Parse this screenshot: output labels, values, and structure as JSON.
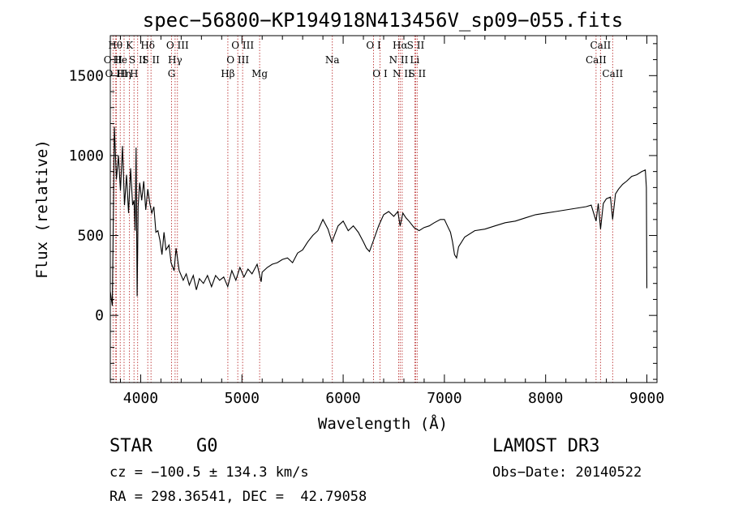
{
  "chart_data": {
    "type": "line",
    "title": "spec−56800−KP194918N413456V_sp09−055.fits",
    "xlabel": "Wavelength (Å)",
    "ylabel": "Flux (relative)",
    "xlim": [
      3700,
      9100
    ],
    "ylim": [
      -420,
      1750
    ],
    "xticks": [
      4000,
      5000,
      6000,
      7000,
      8000,
      9000
    ],
    "yticks": [
      0,
      500,
      1000,
      1500
    ],
    "series": [
      {
        "values": [
          [
            3700,
            150
          ],
          [
            3720,
            60
          ],
          [
            3740,
            1180
          ],
          [
            3760,
            850
          ],
          [
            3780,
            1000
          ],
          [
            3800,
            780
          ],
          [
            3820,
            1060
          ],
          [
            3840,
            690
          ],
          [
            3860,
            880
          ],
          [
            3880,
            640
          ],
          [
            3900,
            920
          ],
          [
            3920,
            690
          ],
          [
            3935,
            720
          ],
          [
            3945,
            530
          ],
          [
            3955,
            1050
          ],
          [
            3965,
            120
          ],
          [
            3975,
            680
          ],
          [
            3990,
            830
          ],
          [
            4010,
            720
          ],
          [
            4030,
            840
          ],
          [
            4050,
            660
          ],
          [
            4070,
            790
          ],
          [
            4090,
            700
          ],
          [
            4110,
            640
          ],
          [
            4130,
            680
          ],
          [
            4150,
            520
          ],
          [
            4170,
            530
          ],
          [
            4190,
            470
          ],
          [
            4210,
            380
          ],
          [
            4230,
            520
          ],
          [
            4250,
            410
          ],
          [
            4280,
            440
          ],
          [
            4300,
            330
          ],
          [
            4330,
            280
          ],
          [
            4350,
            420
          ],
          [
            4380,
            280
          ],
          [
            4420,
            220
          ],
          [
            4450,
            260
          ],
          [
            4480,
            190
          ],
          [
            4520,
            250
          ],
          [
            4550,
            160
          ],
          [
            4580,
            230
          ],
          [
            4620,
            200
          ],
          [
            4660,
            250
          ],
          [
            4700,
            180
          ],
          [
            4740,
            250
          ],
          [
            4780,
            220
          ],
          [
            4820,
            240
          ],
          [
            4860,
            180
          ],
          [
            4900,
            280
          ],
          [
            4940,
            220
          ],
          [
            4980,
            300
          ],
          [
            5020,
            240
          ],
          [
            5060,
            290
          ],
          [
            5100,
            260
          ],
          [
            5150,
            320
          ],
          [
            5190,
            210
          ],
          [
            5200,
            270
          ],
          [
            5250,
            300
          ],
          [
            5300,
            320
          ],
          [
            5350,
            330
          ],
          [
            5400,
            350
          ],
          [
            5450,
            360
          ],
          [
            5500,
            330
          ],
          [
            5550,
            390
          ],
          [
            5600,
            410
          ],
          [
            5650,
            460
          ],
          [
            5700,
            500
          ],
          [
            5750,
            530
          ],
          [
            5800,
            600
          ],
          [
            5850,
            540
          ],
          [
            5890,
            460
          ],
          [
            5950,
            560
          ],
          [
            6000,
            590
          ],
          [
            6050,
            530
          ],
          [
            6100,
            560
          ],
          [
            6150,
            520
          ],
          [
            6200,
            460
          ],
          [
            6230,
            420
          ],
          [
            6260,
            400
          ],
          [
            6300,
            470
          ],
          [
            6350,
            560
          ],
          [
            6400,
            630
          ],
          [
            6450,
            650
          ],
          [
            6500,
            620
          ],
          [
            6540,
            650
          ],
          [
            6563,
            560
          ],
          [
            6590,
            640
          ],
          [
            6620,
            610
          ],
          [
            6650,
            590
          ],
          [
            6700,
            550
          ],
          [
            6750,
            530
          ],
          [
            6800,
            550
          ],
          [
            6850,
            560
          ],
          [
            6900,
            580
          ],
          [
            6960,
            600
          ],
          [
            7000,
            600
          ],
          [
            7030,
            560
          ],
          [
            7060,
            520
          ],
          [
            7080,
            460
          ],
          [
            7100,
            380
          ],
          [
            7120,
            360
          ],
          [
            7140,
            430
          ],
          [
            7200,
            490
          ],
          [
            7300,
            530
          ],
          [
            7400,
            540
          ],
          [
            7500,
            560
          ],
          [
            7600,
            580
          ],
          [
            7700,
            590
          ],
          [
            7800,
            610
          ],
          [
            7900,
            630
          ],
          [
            8000,
            640
          ],
          [
            8100,
            650
          ],
          [
            8200,
            660
          ],
          [
            8300,
            670
          ],
          [
            8400,
            680
          ],
          [
            8450,
            690
          ],
          [
            8498,
            590
          ],
          [
            8520,
            700
          ],
          [
            8542,
            540
          ],
          [
            8570,
            700
          ],
          [
            8600,
            730
          ],
          [
            8640,
            740
          ],
          [
            8662,
            600
          ],
          [
            8690,
            760
          ],
          [
            8720,
            790
          ],
          [
            8760,
            820
          ],
          [
            8800,
            840
          ],
          [
            8850,
            870
          ],
          [
            8900,
            880
          ],
          [
            8950,
            900
          ],
          [
            8985,
            910
          ],
          [
            8995,
            800
          ],
          [
            9000,
            170
          ]
        ]
      }
    ],
    "lines": [
      {
        "label": "O II",
        "wl": 3727,
        "row": 1
      },
      {
        "label": "Hθ",
        "wl": 3750,
        "row": 0
      },
      {
        "label": "O III",
        "wl": 3760,
        "row": 2
      },
      {
        "label": "He",
        "wl": 3798,
        "row": 1
      },
      {
        "label": "Hη",
        "wl": 3836,
        "row": 2
      },
      {
        "label": "K",
        "wl": 3889,
        "row": 0
      },
      {
        "label": "H",
        "wl": 3934,
        "row": 2
      },
      {
        "label": "S II",
        "wl": 3970,
        "row": 1
      },
      {
        "label": "Hδ",
        "wl": 4070,
        "row": 0
      },
      {
        "label": "S II",
        "wl": 4102,
        "row": 1
      },
      {
        "label": "G",
        "wl": 4305,
        "row": 2
      },
      {
        "label": "Hγ",
        "wl": 4340,
        "row": 1
      },
      {
        "label": "O III",
        "wl": 4363,
        "row": 0
      },
      {
        "label": "Hβ",
        "wl": 4861,
        "row": 2
      },
      {
        "label": "O III",
        "wl": 4959,
        "row": 1
      },
      {
        "label": "O III",
        "wl": 5007,
        "row": 0
      },
      {
        "label": "Mg",
        "wl": 5175,
        "row": 2
      },
      {
        "label": "Na",
        "wl": 5893,
        "row": 1
      },
      {
        "label": "O I",
        "wl": 6300,
        "row": 0
      },
      {
        "label": "O I",
        "wl": 6364,
        "row": 2
      },
      {
        "label": "N II",
        "wl": 6548,
        "row": 1
      },
      {
        "label": "Hα",
        "wl": 6563,
        "row": 0
      },
      {
        "label": "N II",
        "wl": 6583,
        "row": 2
      },
      {
        "label": "Li",
        "wl": 6707,
        "row": 1
      },
      {
        "label": "S II",
        "wl": 6716,
        "row": 0
      },
      {
        "label": "S II",
        "wl": 6731,
        "row": 2
      },
      {
        "label": "CaII",
        "wl": 8498,
        "row": 1
      },
      {
        "label": "CaII",
        "wl": 8542,
        "row": 0
      },
      {
        "label": "CaII",
        "wl": 8662,
        "row": 2
      }
    ]
  },
  "info": {
    "class": "STAR",
    "subclass": "G0",
    "survey": "LAMOST DR3",
    "cz": "cz = −100.5 ± 134.3 km/s",
    "obsdate": "Obs−Date: 20140522",
    "radec": "RA = 298.36541, DEC =  42.79058"
  }
}
